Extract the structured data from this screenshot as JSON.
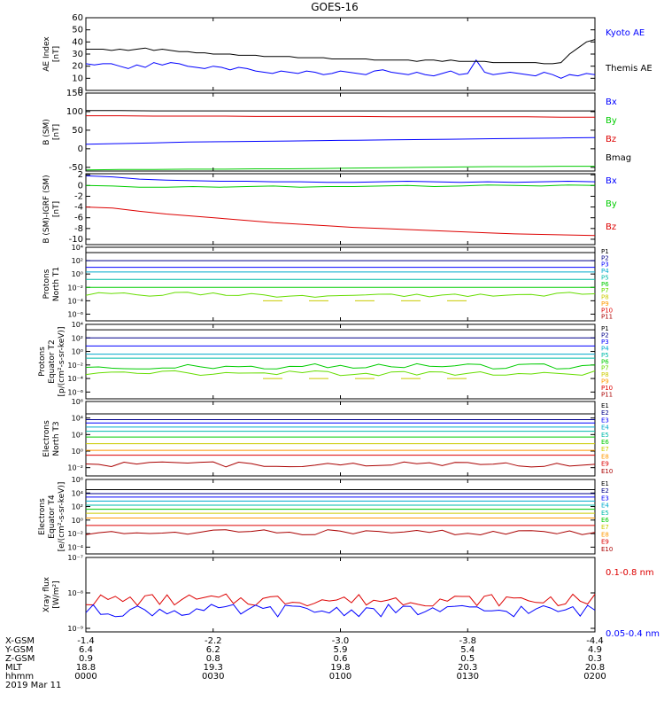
{
  "title": "GOES-16",
  "colors": {
    "black": "#000000",
    "blue": "#0000ff",
    "green": "#00cc00",
    "red": "#dd0000",
    "navy": "#000088",
    "cyan": "#00aacc",
    "teal": "#00bbaa",
    "lime": "#66dd00",
    "yellow": "#cccc00",
    "orange": "#ff9900",
    "darkred": "#aa0000"
  },
  "chart_data": [
    {
      "type": "line",
      "ylabel": [
        "AE Index",
        "[nT]"
      ],
      "ylim": [
        0,
        60
      ],
      "yticks": [
        0,
        10,
        20,
        30,
        40,
        50,
        60
      ],
      "yticklabels": [
        "0",
        "10",
        "20",
        "30",
        "40",
        "50",
        "60"
      ],
      "series": [
        {
          "name": "Kyoto AE",
          "color": "#0000ff",
          "values": [
            22,
            21,
            22,
            22,
            20,
            18,
            21,
            19,
            23,
            21,
            23,
            22,
            20,
            19,
            18,
            20,
            19,
            17,
            19,
            18,
            16,
            15,
            14,
            16,
            15,
            14,
            16,
            15,
            13,
            14,
            16,
            15,
            14,
            13,
            16,
            17,
            15,
            14,
            13,
            15,
            13,
            12,
            14,
            16,
            13,
            14,
            25,
            15,
            13,
            14,
            15,
            14,
            13,
            12,
            15,
            13,
            10,
            13,
            12,
            14,
            13
          ]
        },
        {
          "name": "Themis AE",
          "color": "#000000",
          "values": [
            34,
            34,
            34,
            33,
            34,
            33,
            34,
            35,
            33,
            34,
            33,
            32,
            32,
            31,
            31,
            30,
            30,
            30,
            29,
            29,
            29,
            28,
            28,
            28,
            28,
            27,
            27,
            27,
            27,
            26,
            26,
            26,
            26,
            26,
            25,
            25,
            25,
            25,
            25,
            24,
            25,
            25,
            24,
            25,
            24,
            24,
            24,
            24,
            23,
            23,
            23,
            23,
            23,
            23,
            22,
            22,
            23,
            30,
            35,
            40,
            42
          ]
        }
      ]
    },
    {
      "type": "line",
      "ylabel": [
        "B (SM)",
        "[nT]"
      ],
      "ylim": [
        -60,
        150
      ],
      "yticks": [
        -50,
        0,
        50,
        100,
        150
      ],
      "yticklabels": [
        "-50",
        "0",
        "50",
        "100",
        "150"
      ],
      "series": [
        {
          "name": "Bx",
          "color": "#0000ff",
          "values": [
            12,
            14,
            16,
            18,
            19,
            20,
            21,
            22,
            23,
            24,
            25,
            26,
            27,
            28,
            29,
            30
          ]
        },
        {
          "name": "By",
          "color": "#00cc00",
          "values": [
            -57,
            -56,
            -56,
            -55,
            -55,
            -54,
            -54,
            -53,
            -52,
            -51,
            -50,
            -49,
            -48,
            -48,
            -47,
            -47
          ]
        },
        {
          "name": "Bz",
          "color": "#dd0000",
          "values": [
            89,
            89,
            88,
            88,
            88,
            87,
            87,
            87,
            87,
            86,
            86,
            86,
            86,
            86,
            85,
            85
          ]
        },
        {
          "name": "Bmag",
          "color": "#000000",
          "values": [
            103,
            103,
            102,
            102,
            102,
            102,
            102,
            102,
            102,
            102,
            102,
            102,
            102,
            102,
            102,
            102
          ]
        }
      ]
    },
    {
      "type": "line",
      "ylabel": [
        "B (SM)-IGRF (SM)",
        "[nT]"
      ],
      "ylim": [
        -11,
        2.2
      ],
      "yticks": [
        -10,
        -8,
        -6,
        -4,
        -2,
        0,
        2
      ],
      "yticklabels": [
        "-10",
        "-8",
        "-6",
        "-4",
        "-2",
        "0",
        "2"
      ],
      "series": [
        {
          "name": "Bx",
          "color": "#0000ff",
          "values": [
            1.8,
            1.6,
            1.2,
            1.0,
            0.9,
            0.8,
            0.8,
            0.7,
            0.7,
            0.6,
            0.6,
            0.7,
            0.8,
            0.7,
            0.6,
            0.7,
            0.6,
            0.7,
            0.8,
            0.7
          ]
        },
        {
          "name": "By",
          "color": "#00cc00",
          "values": [
            0.0,
            -0.1,
            -0.3,
            -0.3,
            -0.2,
            -0.3,
            -0.2,
            -0.1,
            -0.3,
            -0.2,
            -0.2,
            -0.1,
            0.0,
            -0.2,
            -0.1,
            0.1,
            0.0,
            -0.1,
            0.1,
            0.0
          ]
        },
        {
          "name": "Bz",
          "color": "#dd0000",
          "values": [
            -4.0,
            -4.2,
            -4.8,
            -5.3,
            -5.7,
            -6.1,
            -6.5,
            -6.9,
            -7.2,
            -7.5,
            -7.8,
            -8.0,
            -8.2,
            -8.4,
            -8.6,
            -8.8,
            -9.0,
            -9.1,
            -9.2,
            -9.3
          ]
        }
      ]
    },
    {
      "type": "line",
      "logy": true,
      "ylabel": [
        "Protons",
        "North T1"
      ],
      "ylim": [
        -7,
        4
      ],
      "yticks": [
        -6,
        -4,
        -2,
        0,
        2,
        4
      ],
      "yticklabels": [
        "10⁻⁶",
        "10⁻⁴",
        "10⁻²",
        "10⁰",
        "10²",
        "10⁴"
      ],
      "channels": [
        {
          "name": "P1",
          "color": "#000000",
          "level": 3.2
        },
        {
          "name": "P2",
          "color": "#000088",
          "level": 2.0
        },
        {
          "name": "P3",
          "color": "#0000ff",
          "level": 1.0
        },
        {
          "name": "P4",
          "color": "#00aacc",
          "level": 0.3
        },
        {
          "name": "P5",
          "color": "#00bbaa",
          "level": -0.8
        },
        {
          "name": "P6",
          "color": "#00cc00",
          "level": -2.0
        },
        {
          "name": "P7",
          "color": "#66dd00",
          "level": -3.1,
          "wavy": true
        },
        {
          "name": "P8",
          "color": "#cccc00",
          "level": -4.0,
          "dashed": true
        },
        {
          "name": "P9",
          "color": "#ff9900",
          "level": -99
        },
        {
          "name": "P10",
          "color": "#dd0000",
          "level": -99
        },
        {
          "name": "P11",
          "color": "#aa0000",
          "level": -99
        }
      ]
    },
    {
      "type": "line",
      "logy": true,
      "ylabel": [
        "Protons",
        "Equator T2",
        "[p/(cm²-s-sr-keV)]"
      ],
      "ylim": [
        -7,
        4
      ],
      "yticks": [
        -6,
        -4,
        -2,
        0,
        2,
        4
      ],
      "yticklabels": [
        "10⁻⁶",
        "10⁻⁴",
        "10⁻²",
        "10⁰",
        "10²",
        "10⁴"
      ],
      "channels": [
        {
          "name": "P1",
          "color": "#000000",
          "level": 3.2
        },
        {
          "name": "P2",
          "color": "#000088",
          "level": 2.0
        },
        {
          "name": "P3",
          "color": "#0000ff",
          "level": 0.8
        },
        {
          "name": "P4",
          "color": "#00aacc",
          "level": -0.4
        },
        {
          "name": "P5",
          "color": "#00bbaa",
          "level": -1.0
        },
        {
          "name": "P6",
          "color": "#00cc00",
          "level": -2.2,
          "wavy": true
        },
        {
          "name": "P7",
          "color": "#66dd00",
          "level": -3.2,
          "wavy": true
        },
        {
          "name": "P8",
          "color": "#cccc00",
          "level": -4.0,
          "dashed": true
        },
        {
          "name": "P9",
          "color": "#ff9900",
          "level": -99
        },
        {
          "name": "P10",
          "color": "#dd0000",
          "level": -99
        },
        {
          "name": "P11",
          "color": "#aa0000",
          "level": -99
        }
      ]
    },
    {
      "type": "line",
      "logy": true,
      "ylabel": [
        "Electrons",
        "North T3"
      ],
      "ylim": [
        -3,
        6
      ],
      "yticks": [
        -2,
        0,
        2,
        4,
        6
      ],
      "yticklabels": [
        "10⁻²",
        "10⁰",
        "10²",
        "10⁴",
        "10⁶"
      ],
      "channels": [
        {
          "name": "E1",
          "color": "#000000",
          "level": 4.5
        },
        {
          "name": "E2",
          "color": "#000088",
          "level": 3.8
        },
        {
          "name": "E3",
          "color": "#0000ff",
          "level": 3.4
        },
        {
          "name": "E4",
          "color": "#00aacc",
          "level": 2.9
        },
        {
          "name": "E5",
          "color": "#00bbaa",
          "level": 2.4
        },
        {
          "name": "E6",
          "color": "#00cc00",
          "level": 1.7
        },
        {
          "name": "E7",
          "color": "#cccc00",
          "level": 0.9
        },
        {
          "name": "E8",
          "color": "#ff9900",
          "level": 0.1
        },
        {
          "name": "E9",
          "color": "#dd0000",
          "level": -0.5
        },
        {
          "name": "E10",
          "color": "#aa0000",
          "level": -1.6,
          "wavy": true
        }
      ]
    },
    {
      "type": "line",
      "logy": true,
      "ylabel": [
        "Electrons",
        "Equator T4",
        "[e/(cm²-s-sr-keV)]"
      ],
      "ylim": [
        -5,
        6
      ],
      "yticks": [
        -4,
        -2,
        0,
        2,
        4,
        6
      ],
      "yticklabels": [
        "10⁻⁴",
        "10⁻²",
        "10⁰",
        "10²",
        "10⁴",
        "10⁶"
      ],
      "channels": [
        {
          "name": "E1",
          "color": "#000000",
          "level": 4.5
        },
        {
          "name": "E2",
          "color": "#000088",
          "level": 3.9
        },
        {
          "name": "E3",
          "color": "#0000ff",
          "level": 3.4
        },
        {
          "name": "E4",
          "color": "#00aacc",
          "level": 2.8
        },
        {
          "name": "E5",
          "color": "#00bbaa",
          "level": 2.2
        },
        {
          "name": "E6",
          "color": "#00cc00",
          "level": 1.6
        },
        {
          "name": "E7",
          "color": "#cccc00",
          "level": 1.0
        },
        {
          "name": "E8",
          "color": "#ff9900",
          "level": 0.3
        },
        {
          "name": "E9",
          "color": "#dd0000",
          "level": -0.8
        },
        {
          "name": "E10",
          "color": "#aa0000",
          "level": -1.8,
          "wavy": true
        }
      ]
    },
    {
      "type": "line",
      "logy": true,
      "ylabel": [
        "Xray flux",
        "[W/m²]"
      ],
      "ylim": [
        -9.1,
        -7
      ],
      "yticks": [
        -9,
        -8,
        -7
      ],
      "yticklabels": [
        "10⁻⁹",
        "10⁻⁸",
        "10⁻⁷"
      ],
      "series": [
        {
          "name": "0.1-0.8 nm",
          "color": "#dd0000",
          "level": -8.2
        },
        {
          "name": "0.05-0.4 nm",
          "color": "#0000ff",
          "level": -8.5
        }
      ]
    }
  ],
  "xaxis": {
    "rows": [
      {
        "label": "X-GSM",
        "values": [
          "-1.4",
          "-2.2",
          "-3.0",
          "-3.8",
          "-4.4"
        ]
      },
      {
        "label": "Y-GSM",
        "values": [
          "6.4",
          "6.2",
          "5.9",
          "5.4",
          "4.9"
        ]
      },
      {
        "label": "Z-GSM",
        "values": [
          "0.9",
          "0.8",
          "0.6",
          "0.5",
          "0.3"
        ]
      },
      {
        "label": "MLT",
        "values": [
          "18.8",
          "19.3",
          "19.8",
          "20.3",
          "20.8"
        ]
      },
      {
        "label": "hhmm",
        "values": [
          "0000",
          "0030",
          "0100",
          "0130",
          "0200"
        ]
      }
    ],
    "date": "2019 Mar 11"
  }
}
